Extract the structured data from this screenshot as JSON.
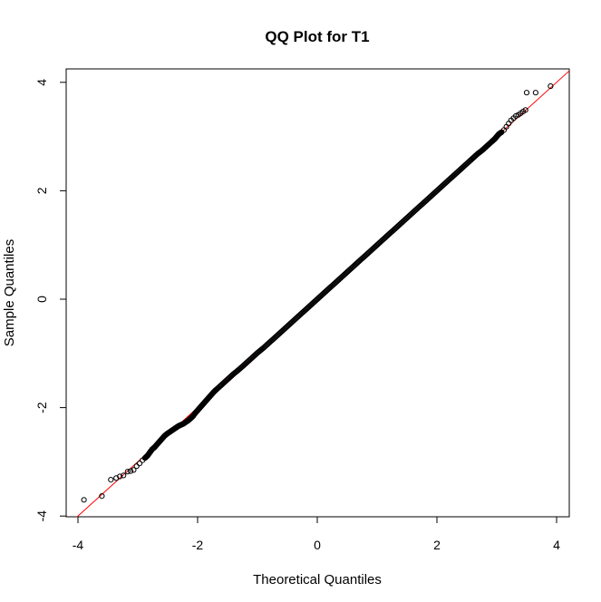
{
  "chart_data": {
    "type": "scatter",
    "title": "QQ Plot for T1",
    "xlabel": "Theoretical Quantiles",
    "ylabel": "Sample Quantiles",
    "xlim": [
      -4,
      4
    ],
    "ylim": [
      -4,
      4
    ],
    "x_ticks": [
      "-4",
      "-2",
      "0",
      "2",
      "4"
    ],
    "y_ticks": [
      "-4",
      "-2",
      "0",
      "2",
      "4"
    ],
    "grid": false,
    "legend": "none",
    "point_color": "#000000",
    "line_color": "#ff0000",
    "reference_line": {
      "slope": 1.0,
      "intercept": 0.0
    },
    "series": [
      {
        "points": [
          [
            -3.9,
            -3.7
          ],
          [
            -3.6,
            -3.63
          ],
          [
            -3.45,
            -3.33
          ],
          [
            -3.36,
            -3.3
          ],
          [
            -3.3,
            -3.27
          ],
          [
            -3.24,
            -3.25
          ],
          [
            -3.17,
            -3.18
          ],
          [
            -3.12,
            -3.17
          ],
          [
            -3.07,
            -3.15
          ],
          [
            -3.02,
            -3.08
          ],
          [
            -2.97,
            -3.03
          ],
          [
            -2.92,
            -2.97
          ],
          [
            -2.88,
            -2.93
          ],
          [
            -2.84,
            -2.89
          ],
          [
            -2.8,
            -2.83
          ],
          [
            -2.76,
            -2.77
          ],
          [
            -2.72,
            -2.73
          ],
          [
            -2.68,
            -2.68
          ],
          [
            -2.64,
            -2.63
          ],
          [
            -2.6,
            -2.58
          ],
          [
            -2.56,
            -2.53
          ],
          [
            -2.52,
            -2.49
          ],
          [
            -2.48,
            -2.46
          ],
          [
            -2.44,
            -2.43
          ],
          [
            -2.4,
            -2.4
          ],
          [
            -2.36,
            -2.37
          ],
          [
            -2.32,
            -2.34
          ],
          [
            -2.28,
            -2.32
          ],
          [
            -2.24,
            -2.3
          ],
          [
            -2.2,
            -2.27
          ],
          [
            -2.16,
            -2.24
          ],
          [
            -2.12,
            -2.2
          ],
          [
            -2.08,
            -2.16
          ],
          [
            -2.04,
            -2.1
          ],
          [
            -2.0,
            -2.05
          ],
          [
            -1.96,
            -2.0
          ],
          [
            -1.92,
            -1.95
          ],
          [
            -1.88,
            -1.9
          ],
          [
            -1.84,
            -1.85
          ],
          [
            -1.8,
            -1.8
          ],
          [
            -1.76,
            -1.75
          ],
          [
            -1.72,
            -1.7
          ],
          [
            -1.68,
            -1.66
          ],
          [
            -1.6,
            -1.58
          ],
          [
            -1.5,
            -1.48
          ],
          [
            -1.4,
            -1.38
          ],
          [
            -1.3,
            -1.29
          ],
          [
            -1.2,
            -1.19
          ],
          [
            -1.1,
            -1.09
          ],
          [
            -1.0,
            -0.99
          ],
          [
            -0.9,
            -0.9
          ],
          [
            -0.8,
            -0.8
          ],
          [
            -0.7,
            -0.7
          ],
          [
            -0.6,
            -0.6
          ],
          [
            -0.5,
            -0.5
          ],
          [
            -0.4,
            -0.4
          ],
          [
            -0.3,
            -0.3
          ],
          [
            -0.2,
            -0.2
          ],
          [
            -0.1,
            -0.1
          ],
          [
            0.0,
            0.0
          ],
          [
            0.1,
            0.1
          ],
          [
            0.2,
            0.2
          ],
          [
            0.3,
            0.3
          ],
          [
            0.4,
            0.4
          ],
          [
            0.5,
            0.5
          ],
          [
            0.6,
            0.6
          ],
          [
            0.7,
            0.7
          ],
          [
            0.8,
            0.8
          ],
          [
            0.9,
            0.9
          ],
          [
            1.0,
            1.0
          ],
          [
            1.1,
            1.1
          ],
          [
            1.2,
            1.2
          ],
          [
            1.3,
            1.3
          ],
          [
            1.4,
            1.4
          ],
          [
            1.5,
            1.5
          ],
          [
            1.6,
            1.6
          ],
          [
            1.7,
            1.7
          ],
          [
            1.8,
            1.8
          ],
          [
            1.9,
            1.9
          ],
          [
            2.0,
            2.0
          ],
          [
            2.1,
            2.1
          ],
          [
            2.2,
            2.2
          ],
          [
            2.3,
            2.3
          ],
          [
            2.4,
            2.4
          ],
          [
            2.5,
            2.5
          ],
          [
            2.6,
            2.6
          ],
          [
            2.68,
            2.68
          ],
          [
            2.74,
            2.73
          ],
          [
            2.8,
            2.79
          ],
          [
            2.86,
            2.85
          ],
          [
            2.92,
            2.91
          ],
          [
            2.97,
            2.96
          ],
          [
            3.0,
            3.0
          ],
          [
            3.04,
            3.05
          ],
          [
            3.08,
            3.08
          ],
          [
            3.12,
            3.12
          ],
          [
            3.16,
            3.18
          ],
          [
            3.2,
            3.24
          ],
          [
            3.24,
            3.3
          ],
          [
            3.28,
            3.34
          ],
          [
            3.32,
            3.38
          ],
          [
            3.36,
            3.4
          ],
          [
            3.4,
            3.43
          ],
          [
            3.44,
            3.46
          ],
          [
            3.48,
            3.49
          ],
          [
            3.5,
            3.81
          ],
          [
            3.65,
            3.81
          ],
          [
            3.9,
            3.93
          ]
        ]
      }
    ]
  }
}
